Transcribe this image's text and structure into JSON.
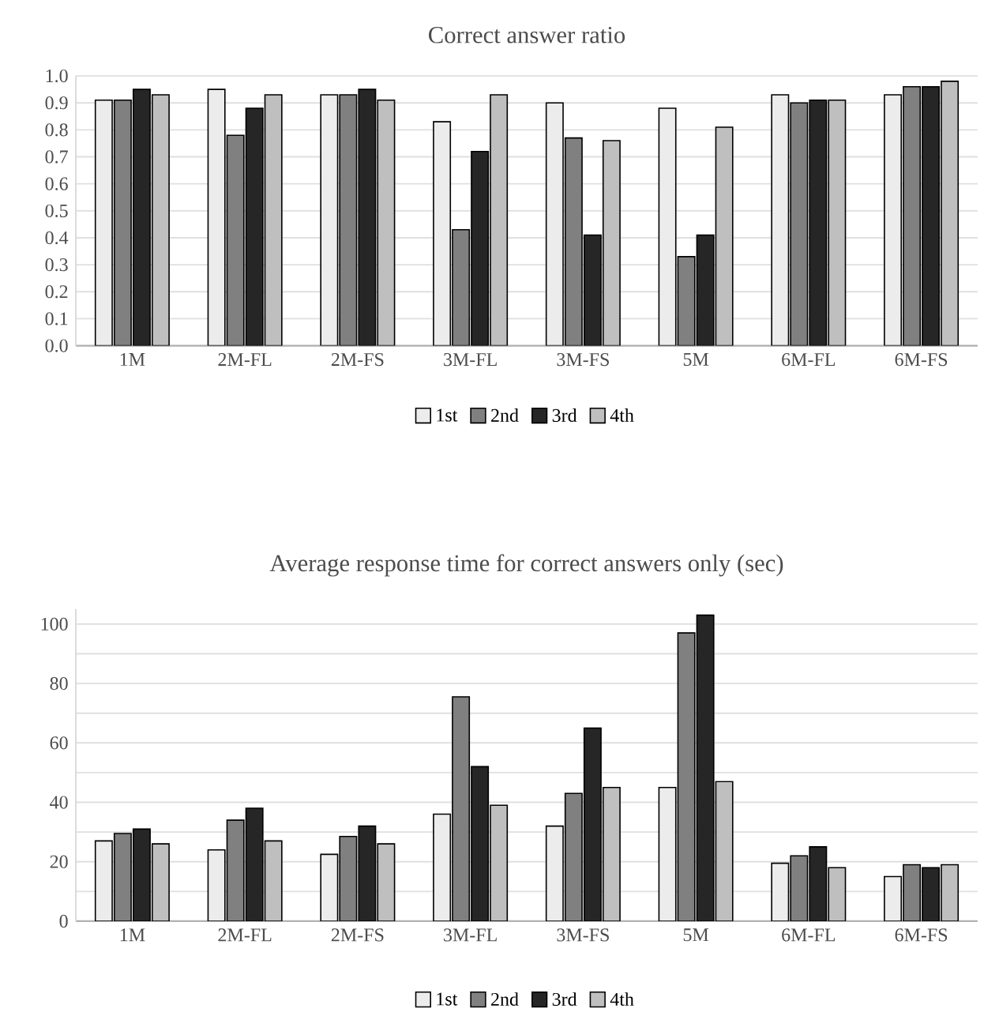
{
  "chart_data": [
    {
      "type": "bar",
      "title": "Correct answer ratio",
      "categories": [
        "1M",
        "2M-FL",
        "2M-FS",
        "3M-FL",
        "3M-FS",
        "5M",
        "6M-FL",
        "6M-FS"
      ],
      "series": [
        {
          "name": "1st",
          "color": "#ececec",
          "values": [
            0.91,
            0.95,
            0.93,
            0.83,
            0.9,
            0.88,
            0.93,
            0.93
          ]
        },
        {
          "name": "2nd",
          "color": "#808080",
          "values": [
            0.91,
            0.78,
            0.93,
            0.43,
            0.77,
            0.33,
            0.9,
            0.96
          ]
        },
        {
          "name": "3rd",
          "color": "#262626",
          "values": [
            0.95,
            0.88,
            0.95,
            0.72,
            0.41,
            0.41,
            0.91,
            0.96
          ]
        },
        {
          "name": "4th",
          "color": "#bfbfbf",
          "values": [
            0.93,
            0.93,
            0.91,
            0.93,
            0.76,
            0.81,
            0.91,
            0.98
          ]
        }
      ],
      "ylim": [
        0,
        1.0
      ],
      "yticks": [
        {
          "value": 0,
          "label": "0.0"
        },
        {
          "value": 0.1,
          "label": "0.1"
        },
        {
          "value": 0.2,
          "label": "0.2"
        },
        {
          "value": 0.3,
          "label": "0.3"
        },
        {
          "value": 0.4,
          "label": "0.4"
        },
        {
          "value": 0.5,
          "label": "0.5"
        },
        {
          "value": 0.6,
          "label": "0.6"
        },
        {
          "value": 0.7,
          "label": "0.7"
        },
        {
          "value": 0.8,
          "label": "0.8"
        },
        {
          "value": 0.9,
          "label": "0.9"
        },
        {
          "value": 1.0,
          "label": "1.0"
        }
      ],
      "grid": "y",
      "legend": "bottom"
    },
    {
      "type": "bar",
      "title": "Average response time for correct answers only (sec)",
      "categories": [
        "1M",
        "2M-FL",
        "2M-FS",
        "3M-FL",
        "3M-FS",
        "5M",
        "6M-FL",
        "6M-FS"
      ],
      "series": [
        {
          "name": "1st",
          "color": "#ececec",
          "values": [
            27,
            24,
            22.5,
            36,
            32,
            45,
            19.5,
            15
          ]
        },
        {
          "name": "2nd",
          "color": "#808080",
          "values": [
            29.5,
            34,
            28.5,
            75.5,
            43,
            97,
            22,
            19
          ]
        },
        {
          "name": "3rd",
          "color": "#262626",
          "values": [
            31,
            38,
            32,
            52,
            65,
            103,
            25,
            18
          ]
        },
        {
          "name": "4th",
          "color": "#bfbfbf",
          "values": [
            26,
            27,
            26,
            39,
            45,
            47,
            18,
            19
          ]
        }
      ],
      "ylim": [
        0,
        105
      ],
      "yticks": [
        0,
        {
          "value": 10,
          "label": null
        },
        20,
        {
          "value": 30,
          "label": null
        },
        40,
        {
          "value": 50,
          "label": null
        },
        60,
        {
          "value": 70,
          "label": null
        },
        80,
        {
          "value": 90,
          "label": null
        },
        100
      ],
      "grid": "y",
      "legend": "bottom"
    }
  ]
}
